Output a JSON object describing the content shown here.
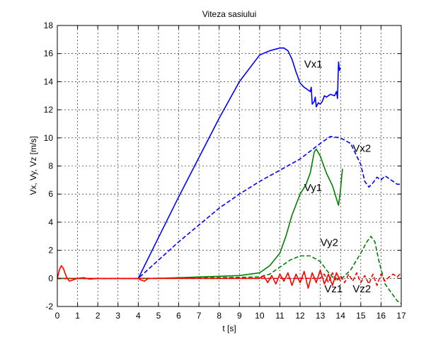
{
  "chart_data": {
    "type": "line",
    "title": "Viteza sasiului",
    "xlabel": "t [s]",
    "ylabel": "Vx, Vy, Vz [m/s]",
    "xlim": [
      0,
      17
    ],
    "ylim": [
      -2,
      18
    ],
    "xticks": [
      0,
      1,
      2,
      3,
      4,
      5,
      6,
      7,
      8,
      9,
      10,
      11,
      12,
      13,
      14,
      15,
      16,
      17
    ],
    "yticks": [
      -2,
      0,
      2,
      4,
      6,
      8,
      10,
      12,
      14,
      16,
      18
    ],
    "grid": true,
    "series": [
      {
        "name": "Vx1",
        "color": "#0000ff",
        "style": "solid",
        "x": [
          0,
          4,
          5,
          6,
          7,
          8,
          9,
          10,
          10.5,
          11,
          11.2,
          11.4,
          11.6,
          11.8,
          12.0,
          12.2,
          12.5,
          12.55,
          12.6,
          12.7,
          12.75,
          12.8,
          12.9,
          13.0,
          13.1,
          13.2,
          13.3,
          13.5,
          13.7,
          13.8,
          13.85,
          13.9,
          13.95,
          14.0
        ],
        "y": [
          0,
          0,
          2.9,
          5.8,
          8.6,
          11.4,
          14.0,
          15.9,
          16.2,
          16.4,
          16.4,
          16.2,
          15.6,
          14.7,
          13.9,
          13.6,
          13.3,
          13.6,
          12.4,
          12.6,
          12.9,
          12.2,
          12.5,
          12.4,
          12.6,
          13.0,
          12.9,
          13.1,
          13.0,
          13.3,
          12.8,
          15.4,
          14.8,
          15.0
        ]
      },
      {
        "name": "Vx2",
        "color": "#0000ff",
        "style": "dashed",
        "x": [
          0,
          4,
          5,
          6,
          7,
          8,
          9,
          10,
          11,
          12,
          13,
          13.5,
          14.0,
          14.5,
          15.0,
          15.2,
          15.4,
          15.6,
          15.8,
          16.0,
          16.2,
          16.4,
          16.6,
          16.8,
          17.0
        ],
        "y": [
          0,
          0,
          1.3,
          2.6,
          3.8,
          5.0,
          6.0,
          6.9,
          7.7,
          8.5,
          9.6,
          10.1,
          10.0,
          9.6,
          8.1,
          6.9,
          6.5,
          6.8,
          7.2,
          7.0,
          7.3,
          7.1,
          6.9,
          6.7,
          6.7
        ]
      },
      {
        "name": "Vy1",
        "color": "#008000",
        "style": "solid",
        "x": [
          0,
          4,
          5,
          6,
          7,
          8,
          9,
          10,
          10.5,
          11,
          11.3,
          11.6,
          12.0,
          12.3,
          12.5,
          12.7,
          12.8,
          13.0,
          13.3,
          13.6,
          13.9,
          14.0,
          14.05,
          14.1
        ],
        "y": [
          0,
          0,
          0,
          0.05,
          0.1,
          0.15,
          0.2,
          0.4,
          0.9,
          1.8,
          3.0,
          4.5,
          6.0,
          6.7,
          7.5,
          9.0,
          9.2,
          8.7,
          7.5,
          6.6,
          5.2,
          6.3,
          7.2,
          7.8
        ]
      },
      {
        "name": "Vy2",
        "color": "#008000",
        "style": "dashed",
        "x": [
          0,
          4,
          8,
          10,
          10.5,
          11,
          11.5,
          12,
          12.5,
          13,
          13.3,
          13.6,
          14.0,
          14.5,
          15.0,
          15.3,
          15.5,
          15.7,
          15.9,
          16.2,
          16.5,
          16.8,
          17.0
        ],
        "y": [
          0,
          0,
          0.05,
          0.1,
          0.3,
          0.8,
          1.3,
          1.6,
          1.6,
          1.2,
          0.6,
          0.1,
          -0.1,
          0.6,
          1.8,
          2.6,
          3.0,
          2.6,
          1.2,
          -0.4,
          -1.0,
          -1.6,
          -1.8
        ]
      },
      {
        "name": "Vz1",
        "color": "#ff0000",
        "style": "solid",
        "x": [
          0,
          0.1,
          0.2,
          0.3,
          0.45,
          0.6,
          0.8,
          1.0,
          1.3,
          1.6,
          2,
          4,
          4.1,
          4.3,
          4.5,
          5,
          10,
          10.2,
          10.4,
          10.6,
          10.8,
          11.0,
          11.2,
          11.4,
          11.6,
          11.8,
          12.0,
          12.2,
          12.4,
          12.6,
          12.8,
          13.0,
          13.2,
          13.4,
          13.6,
          13.8,
          14.0
        ],
        "y": [
          0,
          0.6,
          0.9,
          0.7,
          0.1,
          -0.2,
          -0.1,
          0.0,
          0.05,
          -0.05,
          0,
          0,
          -0.1,
          -0.2,
          0.0,
          0,
          0,
          0.2,
          -0.3,
          0.2,
          -0.4,
          0.3,
          -0.2,
          0.4,
          -0.5,
          0.3,
          -0.3,
          0.5,
          -0.7,
          0.4,
          -0.3,
          0.6,
          -0.4,
          0.3,
          -0.5,
          0.4,
          -0.2
        ]
      },
      {
        "name": "Vz2",
        "color": "#ff0000",
        "style": "dashed",
        "x": [
          0,
          13,
          13.2,
          13.4,
          13.6,
          13.8,
          14.0,
          14.2,
          14.4,
          14.6,
          14.8,
          15.0,
          15.2,
          15.4,
          15.6,
          15.8,
          16.0,
          16.2,
          16.4,
          16.6,
          16.8,
          17.0
        ],
        "y": [
          0,
          0,
          0.3,
          -0.3,
          0.4,
          -0.2,
          0.2,
          -0.3,
          0.3,
          -0.2,
          0.4,
          -0.3,
          0.2,
          -0.4,
          0.3,
          -0.5,
          0.3,
          -0.2,
          0.1,
          0.3,
          0.1,
          0.4
        ]
      }
    ],
    "annotations": [
      {
        "text": "Vx1",
        "x": 12.2,
        "y": 15
      },
      {
        "text": "Vx2",
        "x": 14.6,
        "y": 9
      },
      {
        "text": "Vy1",
        "x": 12.2,
        "y": 6.2
      },
      {
        "text": "Vy2",
        "x": 13.0,
        "y": 2.3
      },
      {
        "text": "Vz1",
        "x": 13.2,
        "y": -1.0
      },
      {
        "text": "Vz2",
        "x": 14.6,
        "y": -1.0
      }
    ]
  }
}
